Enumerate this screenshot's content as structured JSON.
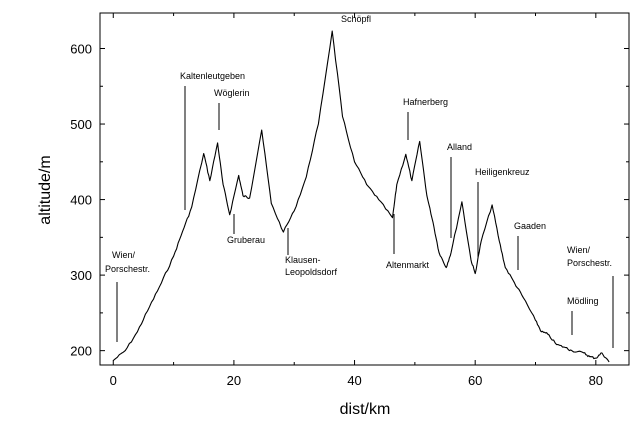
{
  "chart_data": {
    "type": "line",
    "title": "",
    "xlabel": "dist/km",
    "ylabel": "altitude/m",
    "xlim": [
      -2.2,
      85.5
    ],
    "ylim": [
      181,
      647
    ],
    "xticks": [
      0,
      20,
      40,
      60,
      80
    ],
    "yticks": [
      200,
      300,
      400,
      500,
      600
    ],
    "xtick_labels": [
      "0",
      "20",
      "40",
      "60",
      "80"
    ],
    "ytick_labels": [
      "200",
      "300",
      "400",
      "500",
      "600"
    ],
    "grid": false,
    "legend": "none",
    "line_color": "#000000",
    "series": [
      {
        "x": [
          0,
          2,
          4,
          6,
          8,
          10,
          11.5,
          13,
          15,
          16,
          17.3,
          18.2,
          19.3,
          20.8,
          21.5,
          22.6,
          24.6,
          26.2,
          28.2,
          30,
          32,
          34,
          36.3,
          38,
          40,
          42,
          44,
          46.3,
          47,
          48.5,
          49.5,
          50.8,
          52,
          53,
          54,
          55.2,
          56,
          57.8,
          59.3,
          60,
          61,
          62.8,
          64,
          65,
          66.5,
          68,
          70,
          71,
          72,
          73.5,
          75,
          76,
          78,
          79,
          80,
          81,
          82.2
        ],
        "y": [
          187,
          200,
          225,
          258,
          290,
          325,
          358,
          390,
          461,
          425,
          475,
          420,
          380,
          432,
          405,
          402,
          492,
          395,
          357,
          385,
          430,
          500,
          623,
          510,
          450,
          420,
          400,
          376,
          420,
          460,
          425,
          477,
          405,
          370,
          330,
          310,
          330,
          397,
          320,
          302,
          345,
          393,
          345,
          310,
          290,
          270,
          240,
          225,
          222,
          208,
          204,
          200,
          197,
          192,
          190,
          197,
          185
        ]
      }
    ],
    "annotations": [
      {
        "text": "Wien/",
        "x": 0.3,
        "y": 187
      },
      {
        "text": "Porschestr.",
        "x": 0.3,
        "y": 187
      },
      {
        "text": "Kaltenleutgeben",
        "x": 11.5,
        "y": 358
      },
      {
        "text": "Wöglerin",
        "x": 17.3,
        "y": 475
      },
      {
        "text": "Gruberau",
        "x": 19.3,
        "y": 380
      },
      {
        "text": "Klausen-",
        "x": 28.2,
        "y": 357
      },
      {
        "text": "Leopoldsdorf",
        "x": 28.2,
        "y": 357
      },
      {
        "text": "Schöpfl",
        "x": 36.3,
        "y": 623
      },
      {
        "text": "Hafnerberg",
        "x": 48.5,
        "y": 460
      },
      {
        "text": "Altenmarkt",
        "x": 46.3,
        "y": 376
      },
      {
        "text": "Alland",
        "x": 55.2,
        "y": 310
      },
      {
        "text": "Heiligenkreuz",
        "x": 59.3,
        "y": 320
      },
      {
        "text": "Gaaden",
        "x": 66.5,
        "y": 290
      },
      {
        "text": "Wien/",
        "x": 82.2,
        "y": 185
      },
      {
        "text": "Porschestr.",
        "x": 82.2,
        "y": 185
      },
      {
        "text": "Mödling",
        "x": 75,
        "y": 204
      }
    ]
  }
}
